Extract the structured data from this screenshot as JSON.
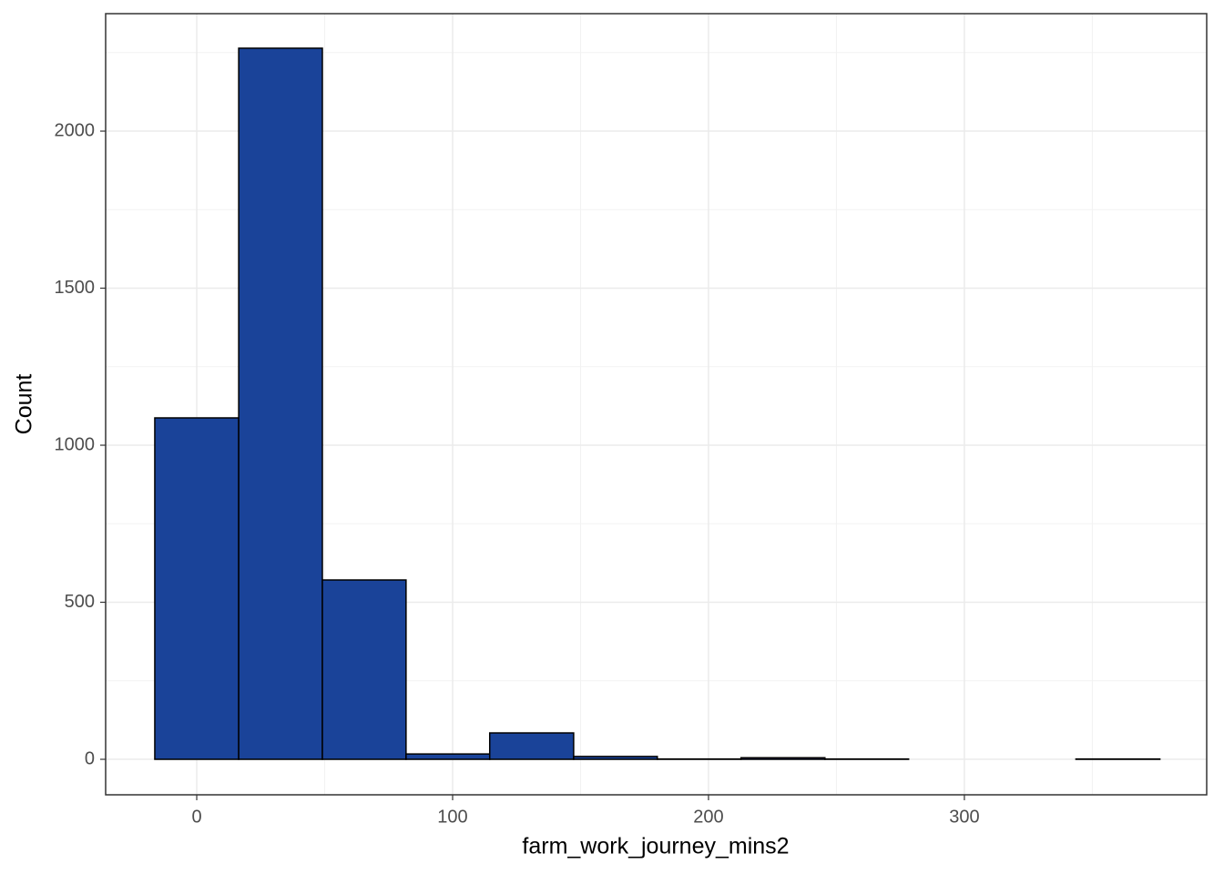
{
  "chart_data": {
    "type": "histogram",
    "x_label": "farm_work_journey_mins2",
    "y_label": "Count",
    "bins": [
      -16.4,
      16.4,
      49.1,
      81.8,
      114.5,
      147.3,
      180,
      212.7,
      245.5,
      278.2,
      310.9,
      343.6,
      376.4
    ],
    "values": [
      1087,
      2264,
      571,
      17,
      84,
      9,
      1,
      5,
      1,
      0,
      0,
      1
    ],
    "color": "#1a4399",
    "xlim": [
      -35.6,
      394.7
    ],
    "xticks": [
      0,
      100,
      200,
      300
    ],
    "ylim": [
      -113,
      2374
    ],
    "yticks": [
      0,
      500,
      1000,
      1500,
      2000
    ],
    "grid": true
  }
}
